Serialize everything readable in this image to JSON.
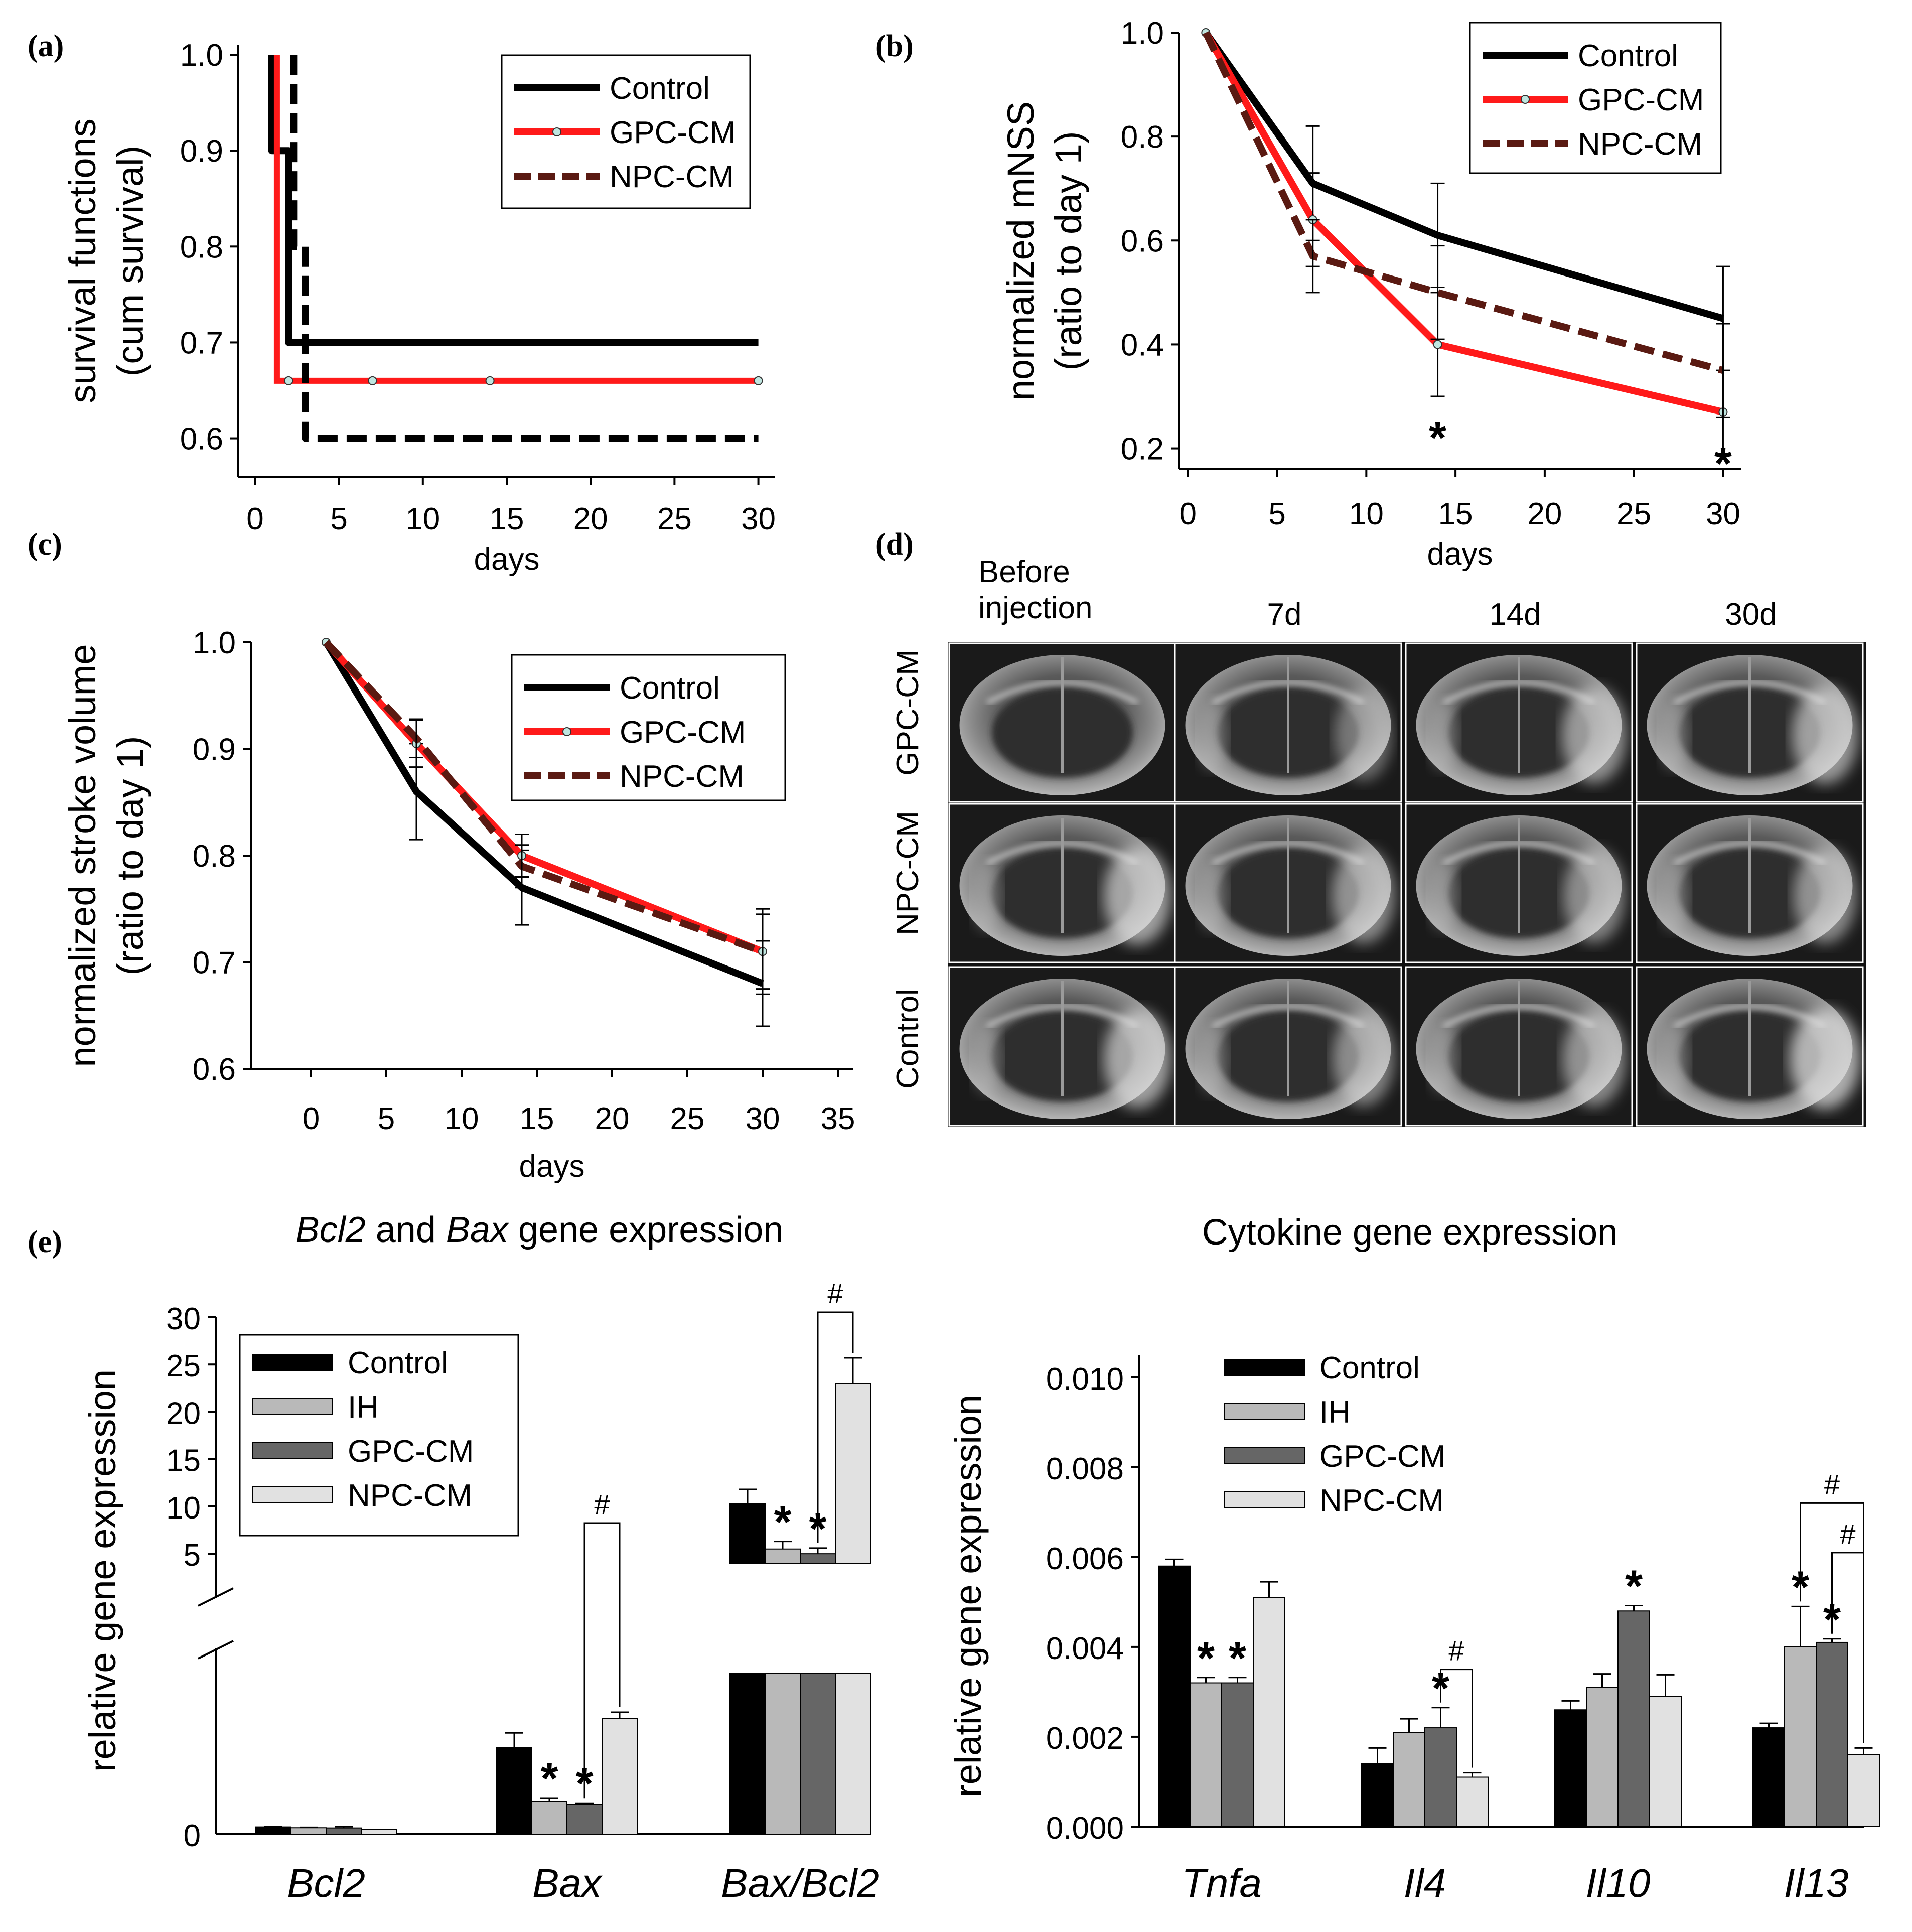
{
  "panels": {
    "a": "(a)",
    "b": "(b)",
    "c": "(c)",
    "d": "(d)",
    "e": "(e)"
  },
  "colors": {
    "control": "#000000",
    "gpc": "#ff1a1a",
    "npc": "#5a1a12",
    "bar_control": "#000000",
    "bar_ih": "#b9b9b9",
    "bar_gpc": "#666666",
    "bar_npc": "#e1e1e1"
  },
  "legend": {
    "control": "Control",
    "gpc": "GPC-CM",
    "npc": "NPC-CM",
    "ih": "IH"
  },
  "chart_data": [
    {
      "id": "a",
      "type": "line",
      "subtype": "step",
      "title": "",
      "xlabel": "days",
      "ylabel_line1": "survival functions",
      "ylabel_line2": "(cum survival)",
      "xlim": [
        -1,
        31
      ],
      "ylim": [
        0.56,
        1.01
      ],
      "xticks": [
        0,
        5,
        10,
        15,
        20,
        25,
        30
      ],
      "yticks": [
        0.6,
        0.7,
        0.8,
        0.9,
        1.0
      ],
      "ytick_labels": [
        "0.6",
        "0.7",
        "0.8",
        "0.9",
        "1.0"
      ],
      "series": [
        {
          "name": "Control",
          "style": "solid",
          "points": [
            [
              1,
              1.0
            ],
            [
              1,
              0.9
            ],
            [
              2,
              0.9
            ],
            [
              2,
              0.7
            ],
            [
              30,
              0.7
            ]
          ]
        },
        {
          "name": "GPC-CM",
          "style": "dotted",
          "points": [
            [
              1.3,
              1.0
            ],
            [
              1.3,
              0.66
            ],
            [
              30,
              0.66
            ]
          ],
          "markers": [
            [
              2,
              0.66
            ],
            [
              7,
              0.66
            ],
            [
              14,
              0.66
            ],
            [
              30,
              0.66
            ]
          ]
        },
        {
          "name": "NPC-CM",
          "style": "dashed",
          "points": [
            [
              2.3,
              1.0
            ],
            [
              2.3,
              0.8
            ],
            [
              3,
              0.8
            ],
            [
              3,
              0.6
            ],
            [
              30,
              0.6
            ]
          ]
        }
      ]
    },
    {
      "id": "b",
      "type": "line",
      "title": "",
      "xlabel": "days",
      "ylabel_line1": "normalized mNSS",
      "ylabel_line2": "(ratio to day 1)",
      "xlim": [
        -0.5,
        31
      ],
      "ylim": [
        0.16,
        1.0
      ],
      "xticks": [
        0,
        5,
        10,
        15,
        20,
        25,
        30
      ],
      "yticks": [
        0.2,
        0.4,
        0.6,
        0.8,
        1.0
      ],
      "ytick_labels": [
        "0.2",
        "0.4",
        "0.6",
        "0.8",
        "1.0"
      ],
      "x": [
        1,
        7,
        14,
        30
      ],
      "series": [
        {
          "name": "Control",
          "style": "solid",
          "values": [
            1.0,
            0.71,
            0.61,
            0.45
          ],
          "err": [
            0,
            0.11,
            0.1,
            0.1
          ]
        },
        {
          "name": "GPC-CM",
          "style": "solid",
          "values": [
            1.0,
            0.64,
            0.4,
            0.27
          ],
          "err": [
            0,
            0.09,
            0.1,
            0.08
          ]
        },
        {
          "name": "NPC-CM",
          "style": "dashed",
          "values": [
            1.0,
            0.57,
            0.5,
            0.35
          ],
          "err": [
            0,
            0.07,
            0.09,
            0.09
          ]
        }
      ],
      "annotations": [
        {
          "x": 14,
          "y": 0.22,
          "text": "*"
        },
        {
          "x": 30,
          "y": 0.17,
          "text": "*"
        }
      ]
    },
    {
      "id": "c",
      "type": "line",
      "title": "",
      "xlabel": "days",
      "ylabel_line1": "normalized stroke volume",
      "ylabel_line2": "(ratio to day 1)",
      "xlim": [
        -4,
        36
      ],
      "ylim": [
        0.6,
        1.0
      ],
      "xticks": [
        0,
        5,
        10,
        15,
        20,
        25,
        30,
        35
      ],
      "yticks": [
        0.6,
        0.7,
        0.8,
        0.9,
        1.0
      ],
      "ytick_labels": [
        "0.6",
        "0.7",
        "0.8",
        "0.9",
        "1.0"
      ],
      "x": [
        1,
        7,
        14,
        30
      ],
      "series": [
        {
          "name": "Control",
          "style": "solid",
          "values": [
            1.0,
            0.86,
            0.77,
            0.68
          ],
          "err": [
            0,
            0.045,
            0.035,
            0.04
          ]
        },
        {
          "name": "GPC-CM",
          "style": "solid",
          "values": [
            1.0,
            0.905,
            0.8,
            0.71
          ],
          "err": [
            0,
            0.022,
            0.02,
            0.035
          ]
        },
        {
          "name": "NPC-CM",
          "style": "dashed",
          "values": [
            1.0,
            0.91,
            0.79,
            0.71
          ],
          "err": [
            0,
            0.018,
            0.02,
            0.04
          ]
        }
      ]
    },
    {
      "id": "e1",
      "type": "bar",
      "title_italic_1": "Bcl2",
      "title_mid": " and ",
      "title_italic_2": "Bax",
      "title_end": " gene expression",
      "ylabel": "relative gene expression",
      "categories": [
        "Bcl2",
        "Bax",
        "Bax/Bcl2"
      ],
      "series": [
        {
          "name": "Control",
          "values": [
            0.35,
            4.2,
            10.3
          ],
          "err": [
            0.02,
            0.7,
            1.5
          ]
        },
        {
          "name": "IH",
          "values": [
            0.31,
            1.6,
            5.5
          ],
          "err": [
            0.02,
            0.15,
            0.8
          ]
        },
        {
          "name": "GPC-CM",
          "values": [
            0.3,
            1.45,
            5.0
          ],
          "err": [
            0.06,
            0.05,
            0.6
          ]
        },
        {
          "name": "NPC-CM",
          "values": [
            0.22,
            5.6,
            23.0
          ],
          "err": [
            0.0,
            0.3,
            2.7
          ]
        }
      ],
      "lower_axis_ylim": [
        0,
        6.8
      ],
      "upper_axis_ylim": [
        4,
        30
      ],
      "yticks_lower": [
        0
      ],
      "yticks_upper": [
        5,
        10,
        15,
        20,
        25,
        30
      ],
      "ytick_labels_lower": [
        "0"
      ],
      "ytick_labels_upper": [
        "5",
        "10",
        "15",
        "20",
        "25",
        "30"
      ],
      "stars": [
        {
          "category": "Bax",
          "series": "IH",
          "text": "*"
        },
        {
          "category": "Bax",
          "series": "GPC-CM",
          "text": "*"
        },
        {
          "category": "Bax/Bcl2",
          "series": "IH",
          "text": "*"
        },
        {
          "category": "Bax/Bcl2",
          "series": "GPC-CM",
          "text": "*"
        }
      ],
      "brackets": [
        {
          "category": "Bax",
          "from": "GPC-CM",
          "to": "NPC-CM",
          "text": "#"
        },
        {
          "category": "Bax/Bcl2",
          "from": "GPC-CM",
          "to": "NPC-CM",
          "text": "#"
        }
      ]
    },
    {
      "id": "e2",
      "type": "bar",
      "title": "Cytokine gene expression",
      "ylabel": "relative gene expression",
      "categories": [
        "Tnfa",
        "Il4",
        "Il10",
        "Il13"
      ],
      "ylim": [
        0,
        0.0105
      ],
      "yticks": [
        0,
        0.002,
        0.004,
        0.006,
        0.008,
        0.01
      ],
      "ytick_labels": [
        "0.000",
        "0.002",
        "0.004",
        "0.006",
        "0.008",
        "0.010"
      ],
      "series": [
        {
          "name": "Control",
          "values": [
            0.0058,
            0.0014,
            0.0026,
            0.0022
          ],
          "err": [
            0.00015,
            0.00035,
            0.0002,
            0.0001
          ]
        },
        {
          "name": "IH",
          "values": [
            0.0032,
            0.0021,
            0.0031,
            0.004
          ],
          "err": [
            0.00012,
            0.0003,
            0.0003,
            0.0009
          ]
        },
        {
          "name": "GPC-CM",
          "values": [
            0.0032,
            0.0022,
            0.0048,
            0.0041
          ],
          "err": [
            0.00012,
            0.00045,
            0.00012,
            8e-05
          ]
        },
        {
          "name": "NPC-CM",
          "values": [
            0.0051,
            0.0011,
            0.0029,
            0.0016
          ],
          "err": [
            0.00035,
            0.0001,
            0.00048,
            0.00015
          ]
        }
      ],
      "stars": [
        {
          "category": "Tnfa",
          "series": "IH",
          "text": "*"
        },
        {
          "category": "Tnfa",
          "series": "GPC-CM",
          "text": "*"
        },
        {
          "category": "Il4",
          "series": "GPC-CM",
          "text": "*"
        },
        {
          "category": "Il10",
          "series": "GPC-CM",
          "text": "*"
        },
        {
          "category": "Il13",
          "series": "IH",
          "text": "*"
        },
        {
          "category": "Il13",
          "series": "GPC-CM",
          "text": "*"
        }
      ],
      "brackets": [
        {
          "category": "Il4",
          "from": "GPC-CM",
          "to": "NPC-CM",
          "text": "#"
        },
        {
          "category": "Il13",
          "from": "IH",
          "to": "NPC-CM",
          "text": "#"
        },
        {
          "category": "Il13",
          "from": "GPC-CM",
          "to": "NPC-CM",
          "text": "#"
        }
      ]
    }
  ],
  "mri": {
    "columns": [
      "Before\ninjection",
      "7d",
      "14d",
      "30d"
    ],
    "col_line1": "Before",
    "col_line2": "injection",
    "col_7": "7d",
    "col_14": "14d",
    "col_30": "30d",
    "rows": [
      "GPC-CM",
      "NPC-CM",
      "Control"
    ]
  }
}
